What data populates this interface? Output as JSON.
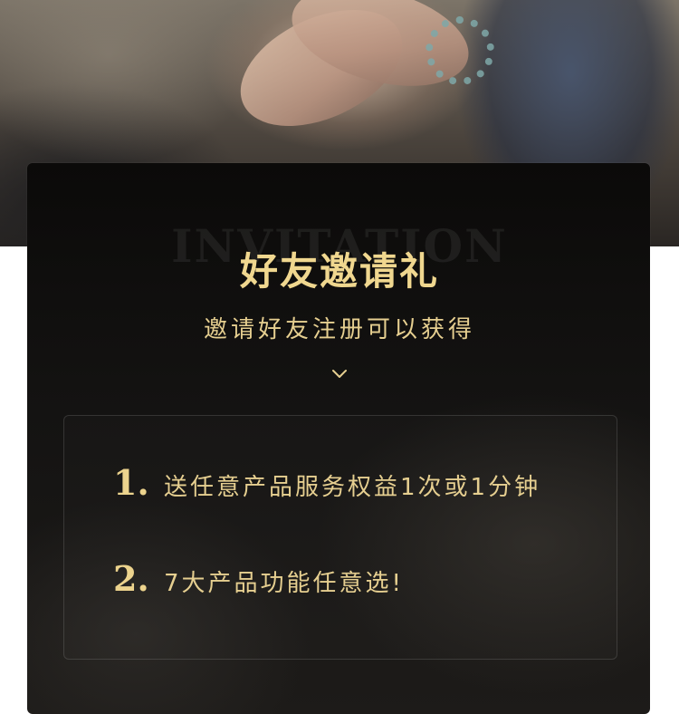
{
  "hero": {
    "image": "photo-hands-high-five"
  },
  "card": {
    "watermark": "INVITATION",
    "title": "好友邀请礼",
    "subtitle": "邀请好友注册可以获得",
    "chevron_icon": "chevron-down-icon",
    "benefits": [
      {
        "number": "1.",
        "text": "送任意产品服务权益1次或1分钟"
      },
      {
        "number": "2.",
        "text": "7大产品功能任意选!"
      }
    ]
  },
  "colors": {
    "gold": "#f0d78f",
    "card_background": "#141312"
  }
}
